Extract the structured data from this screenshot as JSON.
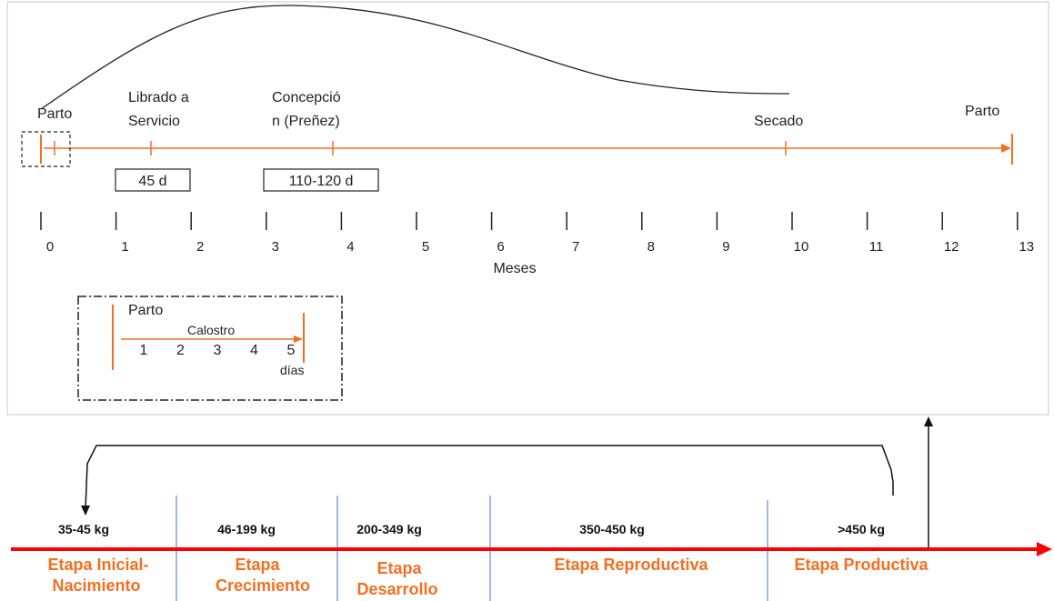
{
  "cycle": {
    "events": [
      {
        "label_lines": [
          "Parto"
        ],
        "month": 0
      },
      {
        "label_lines": [
          "Librado a",
          "Servicio"
        ],
        "month": 1.45
      },
      {
        "label_lines": [
          "Concepció",
          "n (Preñez)"
        ],
        "month": 3.8
      },
      {
        "label_lines": [
          "Secado"
        ],
        "month": 9.8
      },
      {
        "label_lines": [
          "Parto"
        ],
        "month": 13
      }
    ],
    "boxes": [
      {
        "label": "45 d"
      },
      {
        "label": "110-120 d"
      }
    ],
    "month_ticks": [
      "0",
      "1",
      "2",
      "3",
      "4",
      "5",
      "6",
      "7",
      "8",
      "9",
      "10",
      "11",
      "12",
      "13"
    ],
    "axis_label": "Meses"
  },
  "inset": {
    "title": "Parto",
    "arrow_label": "Calostro",
    "days": [
      "1",
      "2",
      "3",
      "4",
      "5"
    ],
    "unit": "días"
  },
  "stages": {
    "weights": [
      "35-45 kg",
      "46-199 kg",
      "200-349 kg",
      "350-450 kg",
      ">450 kg"
    ],
    "names": [
      [
        "Etapa Inicial-",
        "Nacimiento"
      ],
      [
        "Etapa",
        "Crecimiento"
      ],
      [
        "Etapa",
        "Desarrollo"
      ],
      [
        "Etapa Reproductiva"
      ],
      [
        "Etapa Productiva"
      ]
    ]
  },
  "colors": {
    "orange": "#f36f21",
    "red": "#ff0000",
    "blue": "#4472c4",
    "panel_border": "#c8c8c8"
  }
}
